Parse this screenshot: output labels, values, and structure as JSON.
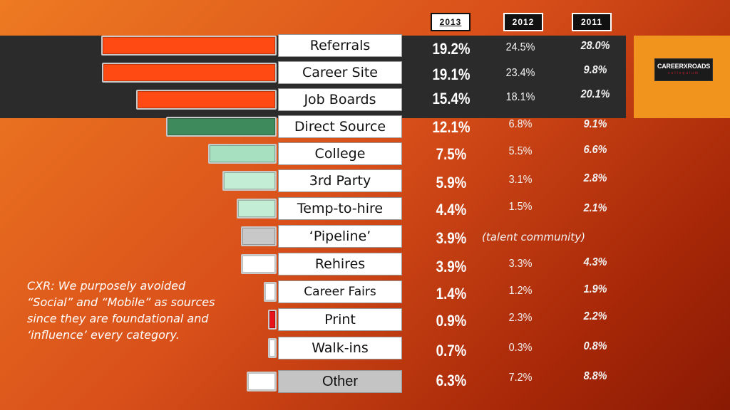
{
  "headers": [
    "2013",
    "2012",
    "2011"
  ],
  "logo": {
    "text": "CAREERXROADS",
    "sub": "colloquium"
  },
  "note_lines": [
    "CXR: We purposely avoided",
    "“Social” and “Mobile” as sources",
    "since they are foundational and",
    "‘influence’ every category."
  ],
  "colors": {
    "orange_red": "#ff4a14",
    "dark_green": "#3f8a5c",
    "light_green": "#a7e0c0",
    "pale_green": "#c3edd4",
    "gray": "#c8c8c8",
    "white": "#ffffff",
    "red": "#e8141a"
  },
  "chart_data": {
    "type": "bar",
    "categories": [
      "Referrals",
      "Career Site",
      "Job Boards",
      "Direct Source",
      "College",
      "3rd Party",
      "Temp-to-hire",
      "‘Pipeline’",
      "Rehires",
      "Career Fairs",
      "Print",
      "Walk-ins",
      "Other"
    ],
    "series": [
      {
        "name": "2013",
        "values": [
          19.2,
          19.1,
          15.4,
          12.1,
          7.5,
          5.9,
          4.4,
          3.9,
          3.9,
          1.4,
          0.9,
          0.7,
          6.3
        ],
        "labels": [
          "19.2%",
          "19.1%",
          "15.4%",
          "12.1%",
          "7.5%",
          "5.9%",
          "4.4%",
          "3.9%",
          "3.9%",
          "1.4%",
          "0.9%",
          "0.7%",
          "6.3%"
        ]
      },
      {
        "name": "2012",
        "values": [
          24.5,
          23.4,
          18.1,
          6.8,
          5.5,
          3.1,
          1.5,
          null,
          3.3,
          1.2,
          2.3,
          0.3,
          7.2
        ],
        "labels": [
          "24.5%",
          "23.4%",
          "18.1%",
          "6.8%",
          "5.5%",
          "3.1%",
          "1.5%",
          "(talent community)",
          "3.3%",
          "1.2%",
          "2.3%",
          "0.3%",
          "7.2%"
        ]
      },
      {
        "name": "2011",
        "values": [
          28.0,
          9.8,
          20.1,
          9.1,
          6.6,
          2.8,
          2.1,
          null,
          4.3,
          1.9,
          2.2,
          0.8,
          8.8
        ],
        "labels": [
          "28.0%",
          "9.8%",
          "20.1%",
          "9.1%",
          "6.6%",
          "2.8%",
          "2.1%",
          "",
          "4.3%",
          "1.9%",
          "2.2%",
          "0.8%",
          "8.8%"
        ]
      }
    ],
    "bar_colors": [
      "orange_red",
      "orange_red",
      "orange_red",
      "dark_green",
      "light_green",
      "pale_green",
      "pale_green",
      "gray",
      "white",
      "white",
      "red",
      "white",
      "white"
    ],
    "title": "",
    "xlabel": "",
    "ylabel": ""
  }
}
